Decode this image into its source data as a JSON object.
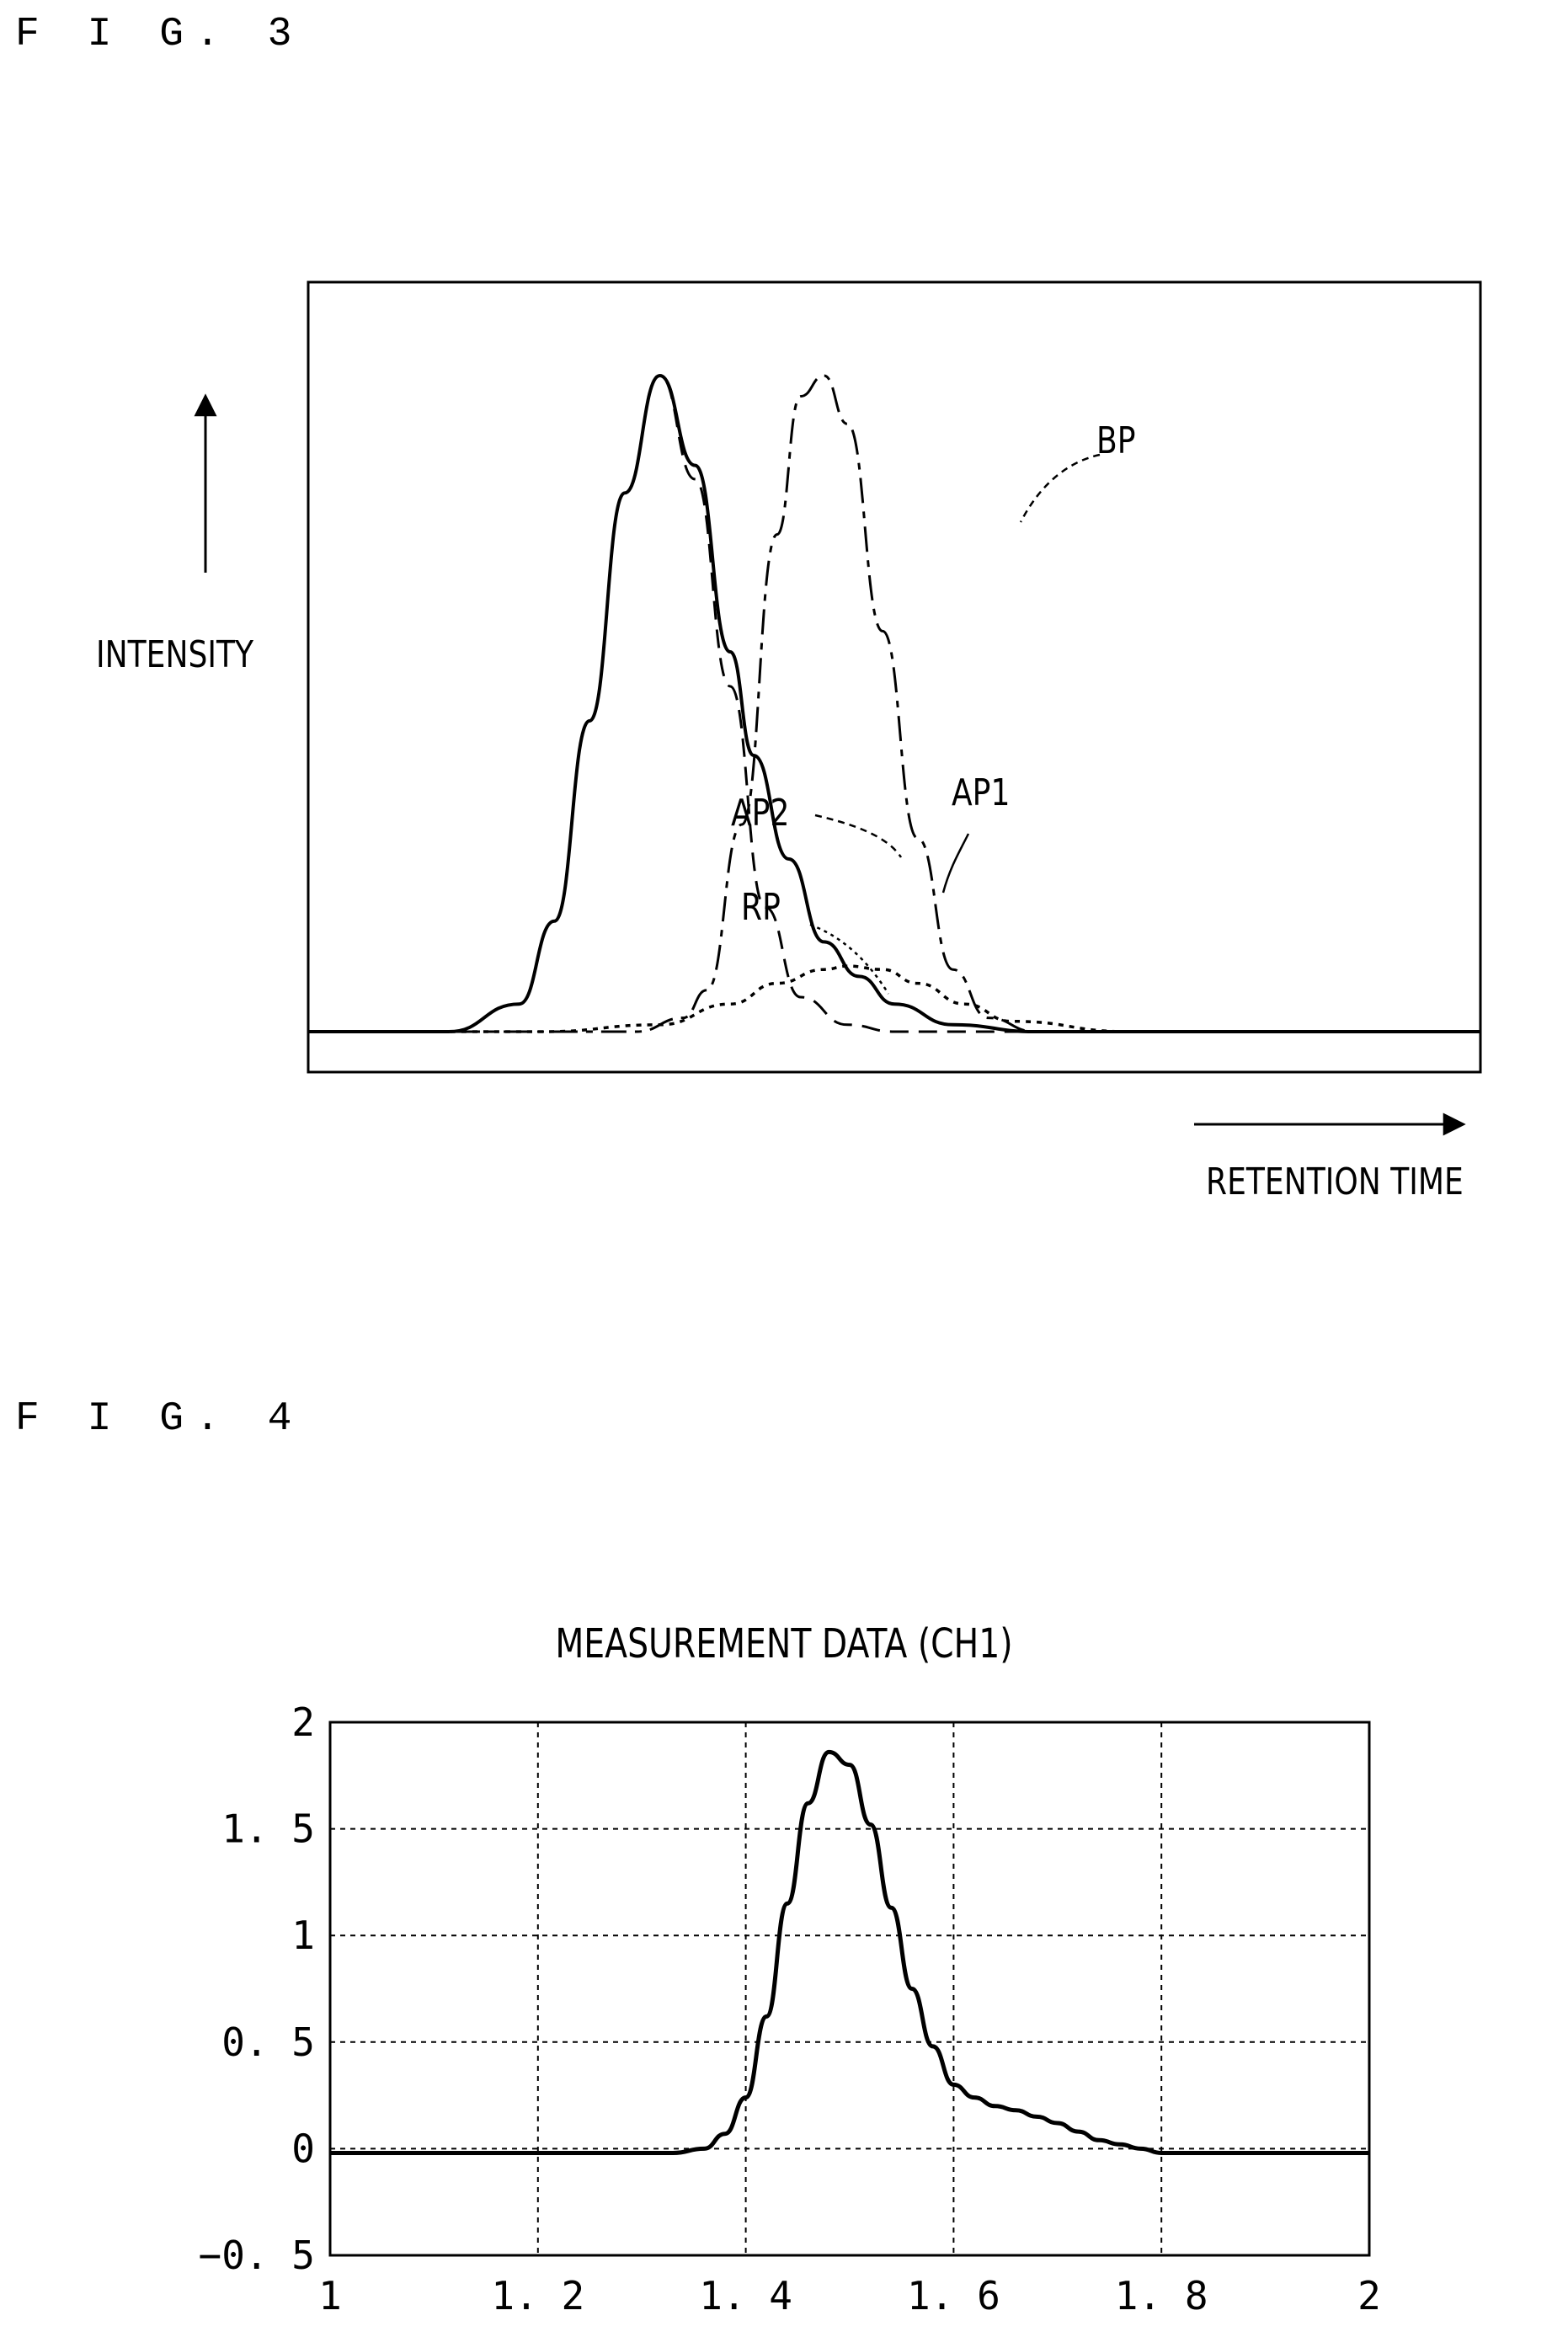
{
  "fig3": {
    "label": "F I G. 3",
    "y_axis_label": "INTENSITY",
    "x_axis_label": "RETENTION TIME",
    "curve_labels": {
      "bp": "BP",
      "ap1": "AP1",
      "ap2": "AP2",
      "rp": "RP"
    }
  },
  "fig4": {
    "label": "F I G. 4"
  },
  "chart_data": [
    {
      "type": "line",
      "title": "",
      "xlabel": "RETENTION TIME",
      "ylabel": "INTENSITY",
      "series": [
        {
          "name": "AP1",
          "x": [
            0,
            0.12,
            0.18,
            0.21,
            0.24,
            0.27,
            0.3,
            0.33,
            0.36,
            0.38,
            0.41,
            0.44,
            0.47,
            0.5,
            0.55,
            0.62,
            0.7,
            0.8,
            1
          ],
          "y": [
            0,
            0,
            0.04,
            0.16,
            0.45,
            0.78,
            0.95,
            0.82,
            0.55,
            0.4,
            0.25,
            0.13,
            0.08,
            0.04,
            0.01,
            0,
            0,
            0,
            0
          ]
        },
        {
          "name": "AP2",
          "x": [
            0,
            0.12,
            0.18,
            0.21,
            0.24,
            0.27,
            0.3,
            0.33,
            0.36,
            0.39,
            0.42,
            0.46,
            0.5,
            0.55,
            0.62,
            0.7,
            1
          ],
          "y": [
            0,
            0,
            0.04,
            0.16,
            0.45,
            0.78,
            0.95,
            0.8,
            0.5,
            0.18,
            0.05,
            0.01,
            0,
            0,
            0,
            0,
            0
          ]
        },
        {
          "name": "RP",
          "x": [
            0,
            0.2,
            0.3,
            0.36,
            0.4,
            0.44,
            0.46,
            0.49,
            0.52,
            0.56,
            0.6,
            0.7,
            1
          ],
          "y": [
            0,
            0,
            0.01,
            0.04,
            0.07,
            0.09,
            0.095,
            0.09,
            0.07,
            0.04,
            0.015,
            0,
            0
          ]
        },
        {
          "name": "BP",
          "x": [
            0,
            0.28,
            0.32,
            0.34,
            0.37,
            0.4,
            0.42,
            0.44,
            0.46,
            0.49,
            0.52,
            0.55,
            0.58,
            0.62,
            0.7,
            1
          ],
          "y": [
            0,
            0,
            0.02,
            0.06,
            0.3,
            0.72,
            0.92,
            0.95,
            0.88,
            0.58,
            0.28,
            0.09,
            0.02,
            0,
            0,
            0
          ]
        }
      ]
    },
    {
      "type": "line",
      "title": "MEASUREMENT DATA (CH1)",
      "xlabel": "",
      "ylabel": "",
      "xlim": [
        1,
        2
      ],
      "ylim": [
        -0.5,
        2
      ],
      "x_ticks": [
        "1",
        "1. 2",
        "1. 4",
        "1. 6",
        "1. 8",
        "2"
      ],
      "y_ticks": [
        "2",
        "1. 5",
        "1",
        "0. 5",
        "0",
        "−0. 5"
      ],
      "grid": true,
      "series": [
        {
          "x": [
            1,
            1.2,
            1.33,
            1.36,
            1.38,
            1.4,
            1.42,
            1.44,
            1.46,
            1.48,
            1.5,
            1.52,
            1.54,
            1.56,
            1.58,
            1.6,
            1.62,
            1.64,
            1.66,
            1.68,
            1.7,
            1.72,
            1.74,
            1.76,
            1.78,
            1.8,
            1.85,
            2
          ],
          "y": [
            -0.02,
            -0.02,
            -0.02,
            0,
            0.07,
            0.24,
            0.62,
            1.15,
            1.62,
            1.86,
            1.8,
            1.52,
            1.13,
            0.75,
            0.48,
            0.3,
            0.24,
            0.2,
            0.18,
            0.15,
            0.12,
            0.08,
            0.04,
            0.02,
            0,
            -0.02,
            -0.02,
            -0.02
          ]
        }
      ]
    }
  ]
}
